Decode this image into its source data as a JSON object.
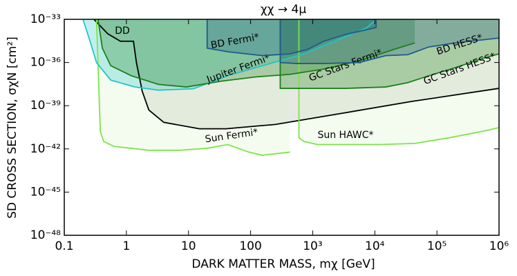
{
  "chart_data": {
    "type": "line",
    "title": "χχ → 4μ",
    "x_label": "DARK MATTER MASS, mχ [GeV]",
    "y_label": "SD CROSS SECTION, σχN [cm²]",
    "xscale": "log",
    "yscale": "log",
    "xlim": [
      0.1,
      1000000
    ],
    "ylim": [
      1e-48,
      1e-33
    ],
    "xticks": [
      0.1,
      1,
      10,
      100,
      {
        "value": 1000,
        "label": "10³"
      },
      {
        "value": 10000,
        "label": "10⁴"
      },
      {
        "value": 100000,
        "label": "10⁵"
      },
      {
        "value": 1000000,
        "label": "10⁶"
      }
    ],
    "yticks": [
      {
        "value": 1e-48,
        "label": "10⁻⁴⁸"
      },
      {
        "value": 1e-45,
        "label": "10⁻⁴⁵"
      },
      {
        "value": 1e-42,
        "label": "10⁻⁴²"
      },
      {
        "value": 1e-39,
        "label": "10⁻³⁹"
      },
      {
        "value": 1e-36,
        "label": "10⁻³⁶"
      },
      {
        "value": 1e-33,
        "label": "10⁻³³"
      }
    ],
    "series": [
      {
        "name": "DD",
        "color": "#000000",
        "fill": "#a8aca0",
        "x": [
          0.3,
          0.5,
          0.8,
          1.3,
          1.45,
          1.8,
          2.3,
          4,
          15,
          40,
          250,
          3000,
          40000,
          1000000
        ],
        "values": [
          1e-33,
          1e-34,
          3e-35,
          3e-35,
          1e-36,
          1e-38,
          5e-40,
          7e-41,
          2.5e-41,
          2.5e-41,
          5e-41,
          3e-40,
          2e-39,
          1.6e-38
        ]
      },
      {
        "name": "Sun Fermi*",
        "color": "#7ee34a",
        "fill": "#d8f5c4",
        "x": [
          0.33,
          0.38,
          0.43,
          0.63,
          1.2,
          2.3,
          7.2,
          20,
          43,
          93,
          155,
          430
        ],
        "values": [
          1e-33,
          1.7e-41,
          3.3e-42,
          1.5e-42,
          1.1e-42,
          8e-43,
          8e-43,
          1.1e-42,
          2e-42,
          6e-43,
          3.6e-43,
          6e-43
        ]
      },
      {
        "name": "Sun HAWC*",
        "color": "#7ee34a",
        "fill": "#d8f5c4",
        "x": [
          600,
          600,
          720,
          1200,
          3400,
          12000,
          44000,
          160000,
          560000,
          1000000
        ],
        "values": [
          1e-33,
          6e-42,
          3.3e-42,
          2e-42,
          2e-42,
          2e-42,
          2.4e-42,
          6e-42,
          1.7e-41,
          3e-41
        ]
      },
      {
        "name": "Jupiter Fermi*",
        "color": "#22c4c8",
        "fill": "#22c4c8",
        "x": [
          0.2,
          0.26,
          0.33,
          0.56,
          1.37,
          3.3,
          12,
          43,
          155,
          725,
          7300,
          10700
        ],
        "values": [
          1e-33,
          3e-35,
          1e-36,
          6e-38,
          2e-38,
          1.2e-38,
          1.5e-38,
          1.2e-37,
          6e-37,
          4e-36,
          2.5e-34,
          1e-33
        ]
      },
      {
        "name": "GC Stars Fermi*",
        "color": "#1a7f1a",
        "fill": "#1a7f1a",
        "x": [
          0.35,
          0.41,
          0.56,
          1.2,
          3.3,
          9.3,
          33,
          120,
          430,
          1500,
          5600,
          20000,
          44000
        ],
        "values": [
          1e-33,
          1e-35,
          6e-37,
          1.2e-37,
          3e-38,
          2e-38,
          5e-38,
          1e-37,
          1.5e-37,
          3.5e-37,
          1.3e-36,
          8e-36,
          2.3e-35
        ]
      },
      {
        "name": "BD Fermi*",
        "color": "#1f5a8a",
        "fill": "#1f5a8a",
        "x": [
          20,
          20,
          43,
          155,
          430,
          820,
          1500,
          3400,
          10500,
          10500
        ],
        "values": [
          1e-33,
          1e-35,
          5.6e-36,
          3e-36,
          4e-36,
          8e-36,
          3e-35,
          9e-35,
          2.7e-34,
          1e-33
        ]
      },
      {
        "name": "GC Stars HESS*",
        "color": "#1a7f1a",
        "fill": "#1a7f1a",
        "x": [
          300,
          300,
          3400,
          15000,
          34000,
          74000,
          200000,
          560000,
          1000000
        ],
        "values": [
          1e-33,
          1.6e-38,
          1.6e-38,
          2e-38,
          4e-38,
          1.2e-37,
          4.5e-37,
          2e-36,
          4e-36
        ]
      },
      {
        "name": "BD HESS*",
        "color": "#1f5a8a",
        "fill": "#1f5a8a",
        "x": [
          300,
          300,
          560,
          1500,
          5600,
          15000,
          34000,
          74000,
          160000,
          340000,
          1000000
        ],
        "values": [
          1e-33,
          1e-36,
          8.5e-37,
          8.5e-37,
          1e-36,
          3e-36,
          3.5e-36,
          1.2e-35,
          2e-35,
          3e-35,
          5e-35
        ]
      }
    ]
  }
}
